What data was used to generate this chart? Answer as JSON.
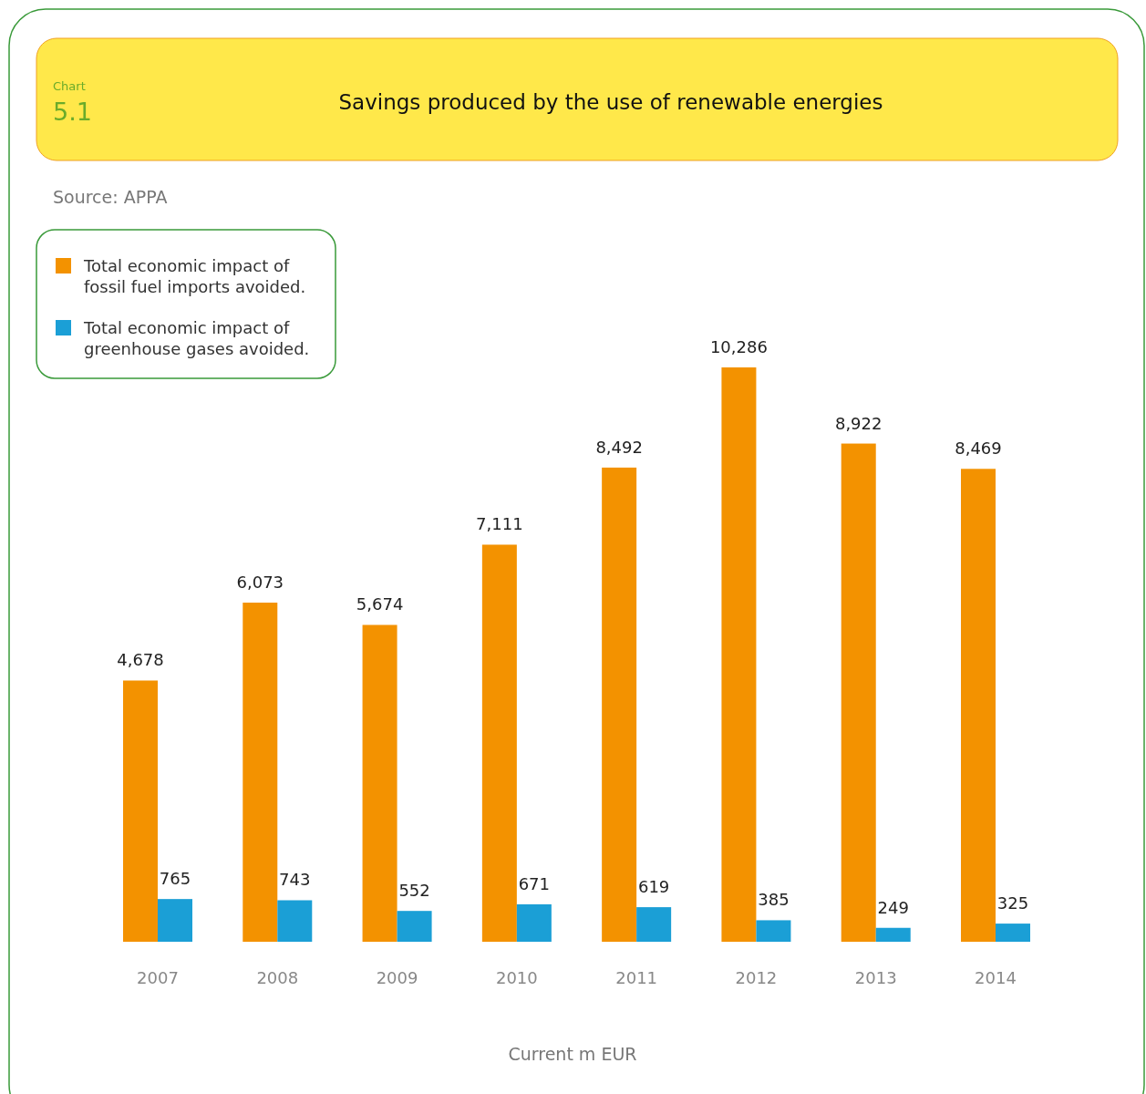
{
  "chart_data": {
    "type": "bar",
    "title": "Savings produced by the use of renewable energies",
    "annotations": [
      "Chart",
      "5.1",
      "Source: APPA"
    ],
    "xlabel": "Current m EUR",
    "categories": [
      "2007",
      "2008",
      "2009",
      "2010",
      "2011",
      "2012",
      "2013",
      "2014"
    ],
    "series": [
      {
        "name": "Total economic impact of fossil fuel imports avoided.",
        "color": "#f39200",
        "values": [
          4678,
          6073,
          5674,
          7111,
          8492,
          10286,
          8922,
          8469
        ],
        "value_labels": [
          "4,678",
          "6,073",
          "5,674",
          "7,111",
          "8,492",
          "10,286",
          "8,922",
          "8,469"
        ]
      },
      {
        "name": "Total economic impact of greenhouse gases avoided.",
        "color": "#1b9fd6",
        "values": [
          765,
          743,
          552,
          671,
          619,
          385,
          249,
          325
        ],
        "value_labels": [
          "765",
          "743",
          "552",
          "671",
          "619",
          "385",
          "249",
          "325"
        ]
      }
    ],
    "legend": "top left"
  }
}
